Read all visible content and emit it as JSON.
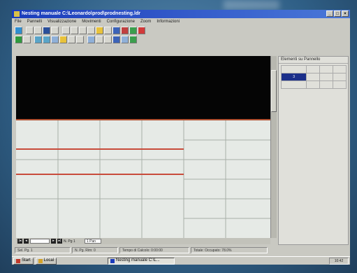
{
  "window": {
    "title": "Nesting manuale C:\\Leonardo\\prod\\prodnesting.ldr"
  },
  "menu": [
    {
      "label": "File"
    },
    {
      "label": "Pannelli"
    },
    {
      "label": "Visualizzazione"
    },
    {
      "label": "Movimenti"
    },
    {
      "label": "Configurazione"
    },
    {
      "label": "Zoom"
    },
    {
      "label": "Informazioni"
    }
  ],
  "panel": {
    "title": "Elementi su Pannello",
    "selected_value": "3"
  },
  "scroll_bar": {
    "left_field": "N. Pg 1",
    "right_field": "1 Pan"
  },
  "status": {
    "fields": [
      "Sel. Pg. 1",
      "N. Pg. Rim: 0",
      "Tempo di Calcolo: 0:00:00",
      "Totale: Occupato: 78.0%"
    ]
  },
  "taskbar": {
    "start_label": "Start",
    "locale_label": "Local",
    "active_task": "Nesting manuale C:\\L...",
    "clock": "10:42"
  },
  "colors": {
    "accent_red": "#c84b3b",
    "title_blue": "#1b3cbb",
    "selection_blue": "#1b2f8a"
  }
}
